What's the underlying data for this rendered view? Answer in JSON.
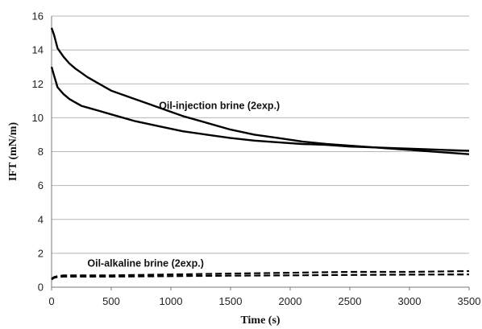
{
  "chart_data": {
    "type": "line",
    "title": "",
    "xlabel": "Time (s)",
    "ylabel": "IFT (mN/m)",
    "xlim": [
      0,
      3500
    ],
    "ylim": [
      0,
      16
    ],
    "x_ticks": [
      0,
      500,
      1000,
      1500,
      2000,
      2500,
      3000,
      3500
    ],
    "y_ticks": [
      0,
      2,
      4,
      6,
      8,
      10,
      12,
      14,
      16
    ],
    "grid": "horizontal",
    "legend": "none",
    "annotations": [
      {
        "text": "Oil-injection brine (2exp.)",
        "x": 900,
        "y": 10.7
      },
      {
        "text": "Oil-alkaline brine (2exp.)",
        "x": 300,
        "y": 1.4
      }
    ],
    "series": [
      {
        "style": "solid",
        "x": [
          0,
          20,
          50,
          100,
          150,
          200,
          300,
          400,
          500,
          700,
          900,
          1100,
          1300,
          1500,
          1700,
          1900,
          2100,
          2300,
          2500,
          2700,
          2900,
          3100,
          3300,
          3500
        ],
        "y": [
          15.3,
          14.9,
          14.1,
          13.6,
          13.2,
          12.9,
          12.4,
          12.0,
          11.6,
          11.1,
          10.6,
          10.1,
          9.7,
          9.3,
          9.0,
          8.8,
          8.6,
          8.45,
          8.35,
          8.25,
          8.15,
          8.05,
          7.95,
          7.85
        ]
      },
      {
        "style": "solid",
        "x": [
          0,
          20,
          50,
          100,
          150,
          200,
          250,
          300,
          400,
          500,
          700,
          900,
          1100,
          1300,
          1500,
          1700,
          1900,
          2100,
          2300,
          2500,
          2700,
          2900,
          3100,
          3300,
          3500
        ],
        "y": [
          13.0,
          12.5,
          11.8,
          11.4,
          11.1,
          10.9,
          10.7,
          10.6,
          10.4,
          10.2,
          9.8,
          9.5,
          9.2,
          9.0,
          8.8,
          8.65,
          8.55,
          8.45,
          8.4,
          8.3,
          8.25,
          8.2,
          8.15,
          8.1,
          8.05
        ]
      },
      {
        "style": "dashed",
        "x": [
          0,
          20,
          50,
          100,
          200,
          500,
          1000,
          1500,
          2000,
          2500,
          3000,
          3500
        ],
        "y": [
          0.5,
          0.6,
          0.65,
          0.7,
          0.7,
          0.7,
          0.75,
          0.8,
          0.85,
          0.9,
          0.9,
          0.95
        ]
      },
      {
        "style": "dashed",
        "x": [
          0,
          20,
          50,
          100,
          200,
          500,
          1000,
          1500,
          2000,
          2500,
          3000,
          3500
        ],
        "y": [
          0.45,
          0.55,
          0.6,
          0.62,
          0.62,
          0.62,
          0.65,
          0.68,
          0.7,
          0.72,
          0.74,
          0.75
        ]
      }
    ]
  }
}
